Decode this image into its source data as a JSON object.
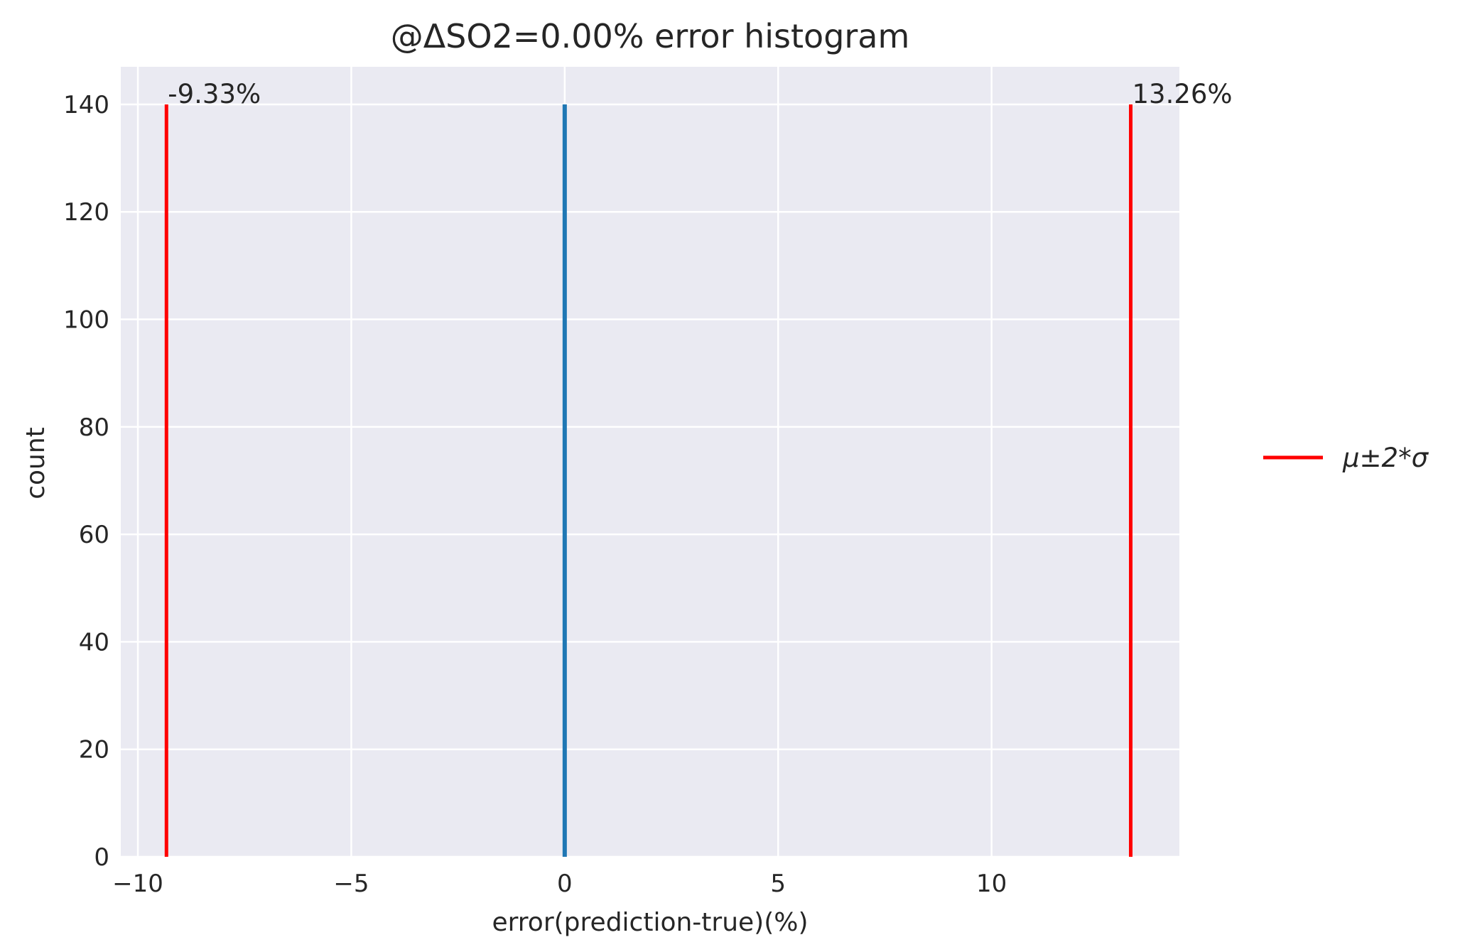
{
  "chart_data": {
    "type": "bar",
    "title": "@ΔSO2=0.00% error histogram",
    "xlabel": "error(prediction-true)(%)",
    "ylabel": "count",
    "xlim": [
      -10.4,
      14.4
    ],
    "ylim": [
      0,
      147
    ],
    "grid": true,
    "x_ticks": [
      -10,
      -5,
      0,
      5,
      10
    ],
    "x_tick_labels": [
      "−10",
      "−5",
      "0",
      "5",
      "10"
    ],
    "y_ticks": [
      0,
      20,
      40,
      60,
      80,
      100,
      120,
      140
    ],
    "y_tick_labels": [
      "0",
      "20",
      "40",
      "60",
      "80",
      "100",
      "120",
      "140"
    ],
    "bars": [
      {
        "x": 0.0,
        "count": 140,
        "color": "#1f77b4"
      }
    ],
    "vlines": [
      {
        "x": -9.33,
        "ymax": 140,
        "label": "-9.33%",
        "color": "#ff0000"
      },
      {
        "x": 13.26,
        "ymax": 140,
        "label": "13.26%",
        "color": "#ff0000"
      }
    ],
    "legend": {
      "placement": "right-outside",
      "entries": [
        {
          "label": "μ±2*σ",
          "color": "#ff0000"
        }
      ]
    },
    "colors": {
      "plot_background": "#eaeaf2",
      "grid": "#ffffff",
      "text": "#262626"
    }
  }
}
